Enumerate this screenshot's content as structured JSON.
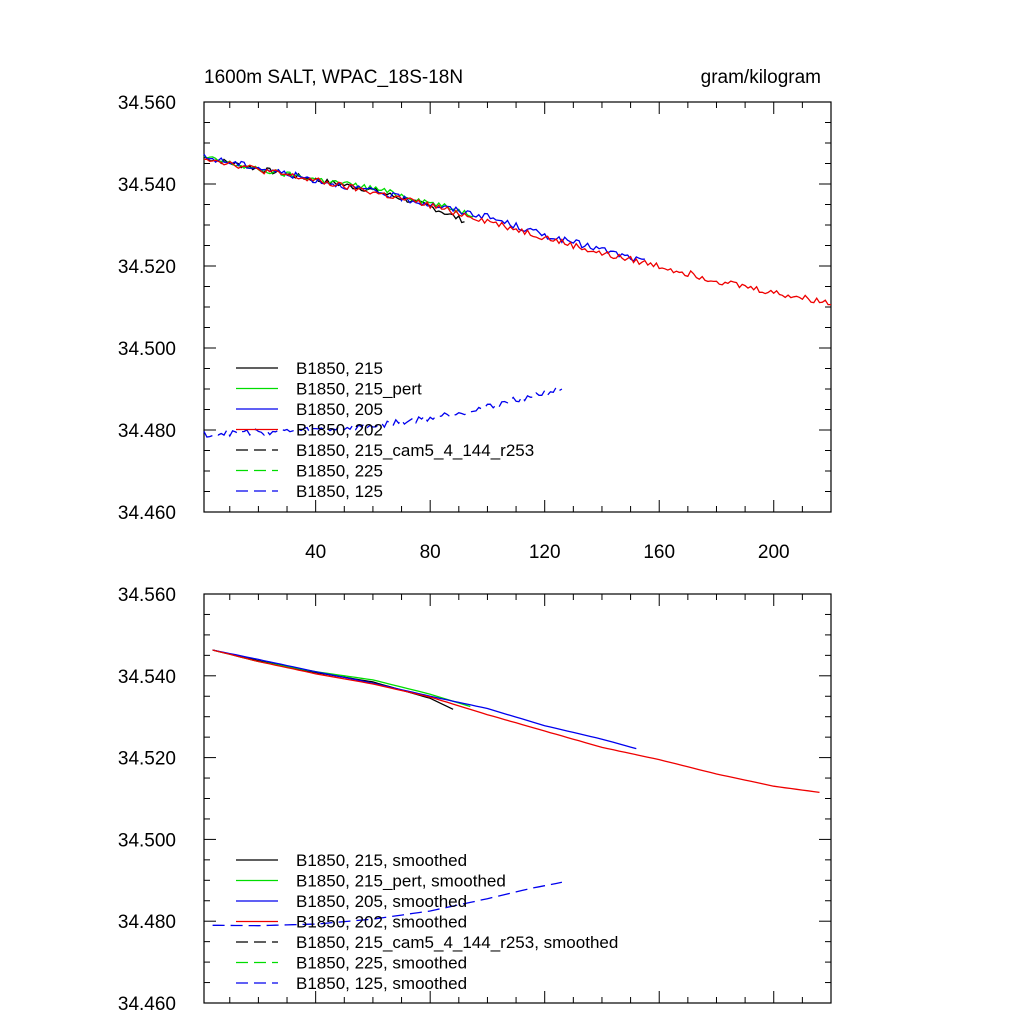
{
  "chart_data": [
    {
      "type": "line",
      "title": "1600m SALT, WPAC_18S-18N",
      "units": "gram/kilogram",
      "xlabel": "",
      "ylabel": "",
      "xlim": [
        1,
        220
      ],
      "ylim": [
        34.46,
        34.56
      ],
      "xticks": [
        40,
        80,
        120,
        160,
        200
      ],
      "xtick_labels": [
        "40",
        "80",
        "120",
        "160",
        "200"
      ],
      "yticks": [
        34.46,
        34.48,
        34.5,
        34.52,
        34.54,
        34.56
      ],
      "ytick_labels": [
        "34.460",
        "34.480",
        "34.500",
        "34.520",
        "34.540",
        "34.560"
      ],
      "legend_position": "bottom-left",
      "series": [
        {
          "name": "B1850, 215",
          "color": "#000000",
          "dash": "solid",
          "noise": 0.0007,
          "x": [
            1,
            20,
            40,
            60,
            80,
            92
          ],
          "values": [
            34.5465,
            34.5437,
            34.541,
            34.5385,
            34.5345,
            34.531
          ]
        },
        {
          "name": "B1850, 215_pert",
          "color": "#00dd00",
          "dash": "solid",
          "noise": 0.0007,
          "x": [
            1,
            20,
            40,
            60,
            80,
            95
          ],
          "values": [
            34.5465,
            34.5435,
            34.5412,
            34.539,
            34.5355,
            34.5325
          ]
        },
        {
          "name": "B1850, 205",
          "color": "#0000ee",
          "dash": "solid",
          "noise": 0.0008,
          "x": [
            1,
            20,
            40,
            60,
            80,
            100,
            120,
            140,
            155
          ],
          "values": [
            34.5465,
            34.544,
            34.541,
            34.5382,
            34.535,
            34.532,
            34.5275,
            34.524,
            34.521
          ]
        },
        {
          "name": "B1850, 202",
          "color": "#ee0000",
          "dash": "solid",
          "noise": 0.0008,
          "x": [
            1,
            20,
            40,
            60,
            80,
            100,
            120,
            140,
            160,
            180,
            200,
            220
          ],
          "values": [
            34.5465,
            34.5435,
            34.5408,
            34.538,
            34.5348,
            34.531,
            34.527,
            34.523,
            34.52,
            34.5165,
            34.5135,
            34.511
          ]
        },
        {
          "name": "B1850, 215_cam5_4_144_r253",
          "color": "#000000",
          "dash": "dashed",
          "noise": 0.0,
          "x": [],
          "values": []
        },
        {
          "name": "B1850, 225",
          "color": "#00dd00",
          "dash": "dashed",
          "noise": 0.0,
          "x": [],
          "values": []
        },
        {
          "name": "B1850, 125",
          "color": "#0000ee",
          "dash": "dashed",
          "noise": 0.0008,
          "x": [
            1,
            20,
            40,
            60,
            80,
            100,
            110,
            126
          ],
          "values": [
            34.479,
            34.4795,
            34.48,
            34.481,
            34.483,
            34.4855,
            34.4875,
            34.49
          ]
        }
      ]
    },
    {
      "type": "line",
      "title": "",
      "xlabel": "",
      "ylabel": "",
      "xlim": [
        1,
        220
      ],
      "ylim": [
        34.46,
        34.56
      ],
      "xticks": [
        40,
        80,
        120,
        160,
        200
      ],
      "xtick_labels": [],
      "yticks": [
        34.46,
        34.48,
        34.5,
        34.52,
        34.54,
        34.56
      ],
      "ytick_labels": [
        "34.460",
        "34.480",
        "34.500",
        "34.520",
        "34.540",
        "34.560"
      ],
      "legend_position": "bottom-left",
      "series": [
        {
          "name": "B1850, 215, smoothed",
          "color": "#000000",
          "dash": "solid",
          "noise": 0.0,
          "x": [
            4,
            20,
            40,
            60,
            80,
            88
          ],
          "values": [
            34.5463,
            34.5437,
            34.5408,
            34.5385,
            34.5345,
            34.5318
          ]
        },
        {
          "name": "B1850, 215_pert, smoothed",
          "color": "#00dd00",
          "dash": "solid",
          "noise": 0.0,
          "x": [
            4,
            20,
            40,
            60,
            80,
            94
          ],
          "values": [
            34.5463,
            34.5435,
            34.541,
            34.539,
            34.5355,
            34.5325
          ]
        },
        {
          "name": "B1850, 205, smoothed",
          "color": "#0000ee",
          "dash": "solid",
          "noise": 0.0,
          "x": [
            4,
            20,
            40,
            60,
            80,
            100,
            120,
            140,
            153
          ],
          "values": [
            34.5463,
            34.544,
            34.541,
            34.5382,
            34.535,
            34.532,
            34.5278,
            34.5245,
            34.522
          ]
        },
        {
          "name": "B1850, 202, smoothed",
          "color": "#ee0000",
          "dash": "solid",
          "noise": 0.0,
          "x": [
            4,
            20,
            40,
            60,
            80,
            100,
            120,
            140,
            160,
            180,
            200,
            216
          ],
          "values": [
            34.5463,
            34.5435,
            34.5405,
            34.538,
            34.5348,
            34.5305,
            34.5265,
            34.5225,
            34.5195,
            34.516,
            34.513,
            34.5115
          ]
        },
        {
          "name": "B1850, 215_cam5_4_144_r253, smoothed",
          "color": "#000000",
          "dash": "dashed",
          "noise": 0.0,
          "x": [],
          "values": []
        },
        {
          "name": "B1850, 225, smoothed",
          "color": "#00dd00",
          "dash": "dashed",
          "noise": 0.0,
          "x": [],
          "values": []
        },
        {
          "name": "B1850, 125, smoothed",
          "color": "#0000ee",
          "dash": "dashed",
          "noise": 0.0,
          "x": [
            4,
            20,
            40,
            60,
            80,
            100,
            115,
            126
          ],
          "values": [
            34.479,
            34.4789,
            34.4793,
            34.4805,
            34.4825,
            34.4855,
            34.488,
            34.4895
          ]
        }
      ]
    }
  ]
}
